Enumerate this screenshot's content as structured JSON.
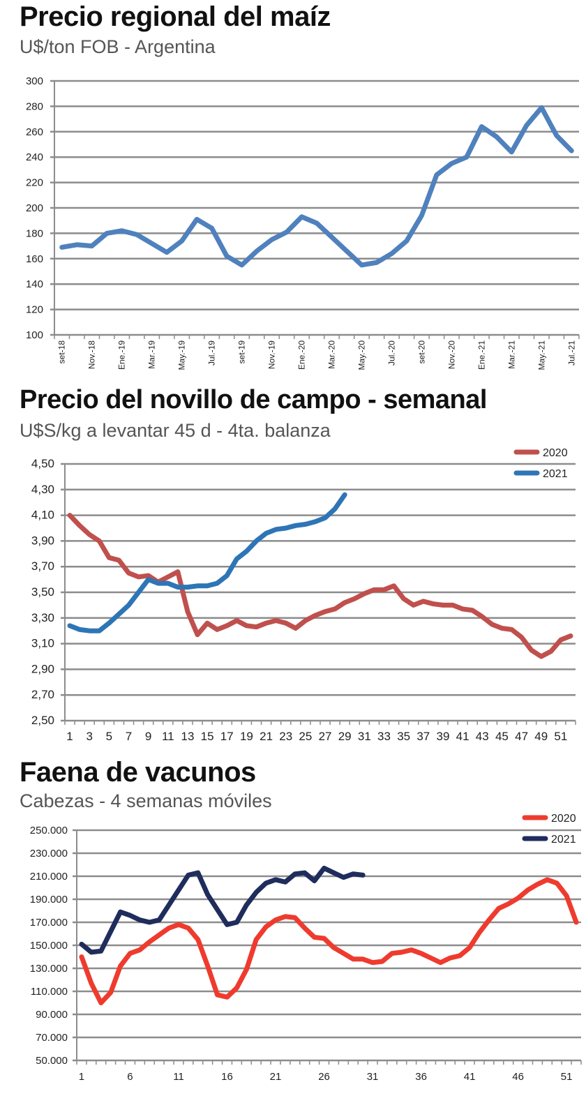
{
  "chart_data": [
    {
      "type": "line",
      "title": "Precio regional del maíz",
      "subtitle": "U$/ton FOB - Argentina",
      "xlabel": "",
      "ylabel": "",
      "ylim": [
        100,
        300
      ],
      "yticks": [
        100,
        120,
        140,
        160,
        180,
        200,
        220,
        240,
        260,
        280,
        300
      ],
      "ytick_labels": [
        "100",
        "120",
        "140",
        "160",
        "180",
        "200",
        "220",
        "240",
        "260",
        "280",
        "300"
      ],
      "x_tick_labels": [
        "set-18",
        "Nov.-18",
        "Ene.-19",
        "Mar.-19",
        "May.-19",
        "Jul.-19",
        "set-19",
        "Nov.-19",
        "Ene.-20",
        "Mar.-20",
        "May.-20",
        "Jul.-20",
        "set-20",
        "Nov.-20",
        "Ene.-21",
        "Mar.-21",
        "May.-21",
        "Jul.-21"
      ],
      "grid": true,
      "legend": null,
      "series": [
        {
          "name": "Maíz",
          "color": "#4f81bd",
          "values": [
            169,
            171,
            170,
            180,
            182,
            179,
            172,
            165,
            174,
            191,
            184,
            162,
            155,
            166,
            175,
            181,
            193,
            188,
            177,
            166,
            155,
            157,
            164,
            174,
            194,
            226,
            235,
            240,
            264,
            256,
            244,
            265,
            279,
            257,
            245
          ]
        }
      ]
    },
    {
      "type": "line",
      "title": "Precio del novillo de campo - semanal",
      "subtitle": "U$S/kg a levantar 45 d - 4ta. balanza",
      "xlabel": "",
      "ylabel": "",
      "ylim": [
        2.5,
        4.5
      ],
      "yticks": [
        2.5,
        2.7,
        2.9,
        3.1,
        3.3,
        3.5,
        3.7,
        3.9,
        4.1,
        4.3,
        4.5
      ],
      "ytick_labels": [
        "2,50",
        "2,70",
        "2,90",
        "3,10",
        "3,30",
        "3,50",
        "3,70",
        "3,90",
        "4,10",
        "4,30",
        "4,50"
      ],
      "x_count": 52,
      "x_tick_labels": [
        "1",
        "3",
        "5",
        "7",
        "9",
        "11",
        "13",
        "15",
        "17",
        "19",
        "21",
        "23",
        "25",
        "27",
        "29",
        "31",
        "33",
        "35",
        "37",
        "39",
        "41",
        "43",
        "45",
        "47",
        "49",
        "51"
      ],
      "grid": true,
      "legend": "top-right",
      "series": [
        {
          "name": "2020",
          "color": "#c0504d",
          "values": [
            4.1,
            4.02,
            3.95,
            3.9,
            3.77,
            3.75,
            3.65,
            3.62,
            3.63,
            3.58,
            3.62,
            3.66,
            3.35,
            3.17,
            3.26,
            3.21,
            3.24,
            3.28,
            3.24,
            3.23,
            3.26,
            3.28,
            3.26,
            3.22,
            3.28,
            3.32,
            3.35,
            3.37,
            3.42,
            3.45,
            3.49,
            3.52,
            3.52,
            3.55,
            3.45,
            3.4,
            3.43,
            3.41,
            3.4,
            3.4,
            3.37,
            3.36,
            3.31,
            3.25,
            3.22,
            3.21,
            3.15,
            3.05,
            3.0,
            3.04,
            3.13,
            3.16
          ]
        },
        {
          "name": "2021",
          "color": "#2e75b6",
          "values": [
            3.24,
            3.21,
            3.2,
            3.2,
            3.26,
            3.33,
            3.4,
            3.5,
            3.6,
            3.57,
            3.57,
            3.54,
            3.54,
            3.55,
            3.55,
            3.57,
            3.63,
            3.76,
            3.82,
            3.9,
            3.96,
            3.99,
            4.0,
            4.02,
            4.03,
            4.05,
            4.08,
            4.15,
            4.26
          ]
        }
      ]
    },
    {
      "type": "line",
      "title": "Faena de vacunos",
      "subtitle": "Cabezas - 4 semanas móviles",
      "xlabel": "",
      "ylabel": "",
      "ylim": [
        50000,
        250000
      ],
      "yticks": [
        50000,
        70000,
        90000,
        110000,
        130000,
        150000,
        170000,
        190000,
        210000,
        230000,
        250000
      ],
      "ytick_labels": [
        "50.000",
        "70.000",
        "90.000",
        "110.000",
        "130.000",
        "150.000",
        "170.000",
        "190.000",
        "210.000",
        "230.000",
        "250.000"
      ],
      "x_count": 52,
      "x_tick_labels": [
        "1",
        "6",
        "11",
        "16",
        "21",
        "26",
        "31",
        "36",
        "41",
        "46",
        "51"
      ],
      "grid": true,
      "legend": "top-right",
      "series": [
        {
          "name": "2020",
          "color": "#ee3b2e",
          "values": [
            140000,
            117000,
            100000,
            109000,
            132000,
            143000,
            146000,
            153000,
            159000,
            165000,
            168000,
            165000,
            155000,
            132000,
            107000,
            105000,
            113000,
            129000,
            155000,
            166000,
            172000,
            175000,
            174000,
            165000,
            157000,
            156000,
            148000,
            143000,
            138000,
            138000,
            135000,
            136000,
            143000,
            144000,
            146000,
            143000,
            139000,
            135000,
            139000,
            141000,
            148000,
            161000,
            172000,
            182000,
            186000,
            191000,
            198000,
            203000,
            207000,
            204000,
            193000,
            170000
          ]
        },
        {
          "name": "2021",
          "color": "#1f2d5c",
          "values": [
            151000,
            144000,
            145000,
            162000,
            179000,
            176000,
            172000,
            170000,
            172000,
            185000,
            198000,
            211000,
            213000,
            194000,
            181000,
            168000,
            170000,
            185000,
            196000,
            204000,
            207000,
            205000,
            212000,
            213000,
            206000,
            217000,
            213000,
            209000,
            212000,
            211000
          ]
        }
      ]
    }
  ]
}
